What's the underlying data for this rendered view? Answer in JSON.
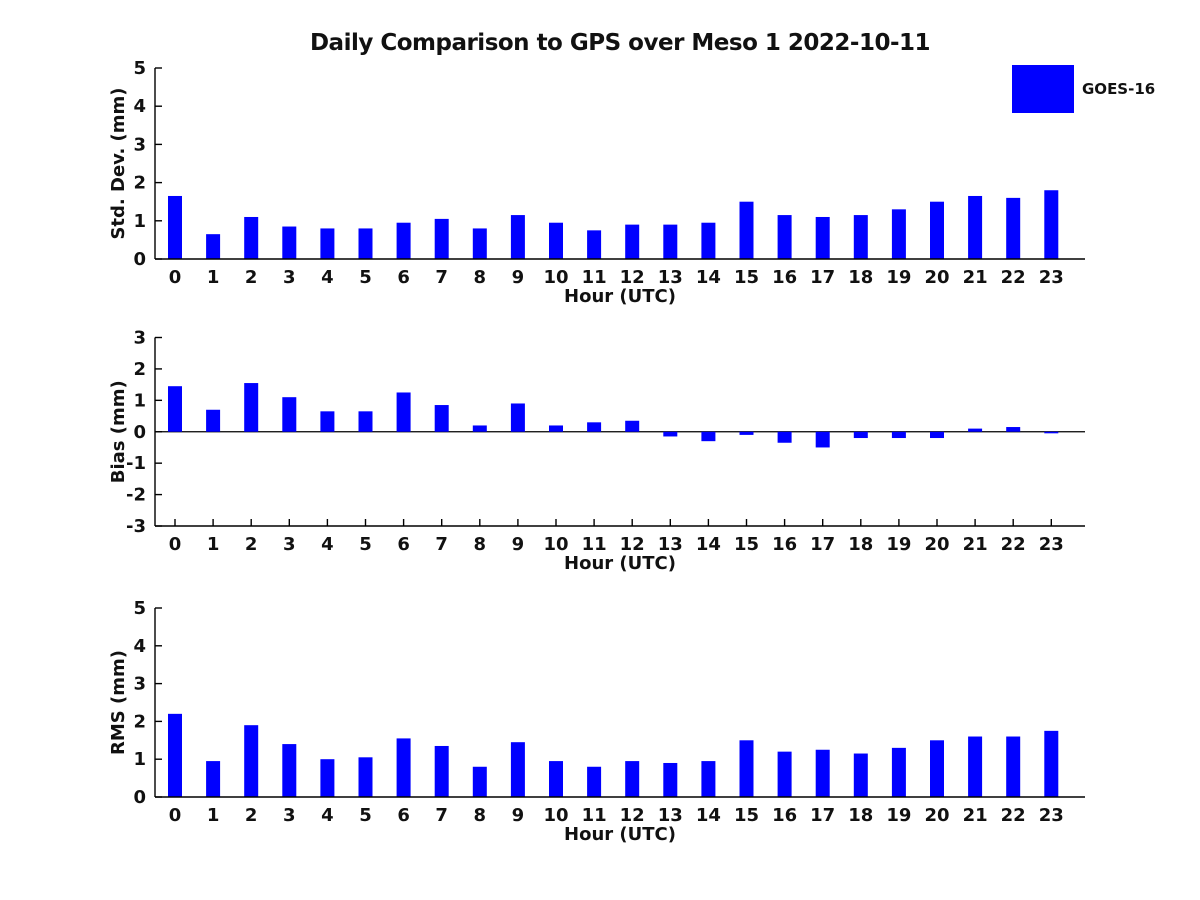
{
  "title": "Daily Comparison to GPS over Meso 1 2022-10-11",
  "legend": {
    "label": "GOES-16",
    "color": "#0000ff",
    "position": "top-right"
  },
  "colors": {
    "bar": "#0000ff",
    "axis": "#000000",
    "text": "#111111",
    "background": "#ffffff"
  },
  "chart_data": [
    {
      "type": "bar",
      "title": "",
      "series_name": "GOES-16",
      "categories": [
        "0",
        "1",
        "2",
        "3",
        "4",
        "5",
        "6",
        "7",
        "8",
        "9",
        "10",
        "11",
        "12",
        "13",
        "14",
        "15",
        "16",
        "17",
        "18",
        "19",
        "20",
        "21",
        "22",
        "23"
      ],
      "values": [
        1.65,
        0.65,
        1.1,
        0.85,
        0.8,
        0.8,
        0.95,
        1.05,
        0.8,
        1.15,
        0.95,
        0.75,
        0.9,
        0.9,
        0.95,
        1.5,
        1.15,
        1.1,
        1.15,
        1.3,
        1.5,
        1.65,
        1.6,
        1.8
      ],
      "xlabel": "Hour (UTC)",
      "ylabel": "Std. Dev. (mm)",
      "ylim": [
        0,
        5
      ],
      "yticks": [
        0,
        1,
        2,
        3,
        4,
        5
      ],
      "grid": false,
      "zero_line": false
    },
    {
      "type": "bar",
      "title": "",
      "series_name": "GOES-16",
      "categories": [
        "0",
        "1",
        "2",
        "3",
        "4",
        "5",
        "6",
        "7",
        "8",
        "9",
        "10",
        "11",
        "12",
        "13",
        "14",
        "15",
        "16",
        "17",
        "18",
        "19",
        "20",
        "21",
        "22",
        "23"
      ],
      "values": [
        1.45,
        0.7,
        1.55,
        1.1,
        0.65,
        0.65,
        1.25,
        0.85,
        0.2,
        0.9,
        0.2,
        0.3,
        0.35,
        -0.15,
        -0.3,
        -0.1,
        -0.35,
        -0.5,
        -0.2,
        -0.2,
        -0.2,
        0.1,
        0.15,
        -0.05
      ],
      "xlabel": "Hour (UTC)",
      "ylabel": "Bias (mm)",
      "ylim": [
        -3,
        3
      ],
      "yticks": [
        -3,
        -2,
        -1,
        0,
        1,
        2,
        3
      ],
      "grid": false,
      "zero_line": true
    },
    {
      "type": "bar",
      "title": "",
      "series_name": "GOES-16",
      "categories": [
        "0",
        "1",
        "2",
        "3",
        "4",
        "5",
        "6",
        "7",
        "8",
        "9",
        "10",
        "11",
        "12",
        "13",
        "14",
        "15",
        "16",
        "17",
        "18",
        "19",
        "20",
        "21",
        "22",
        "23"
      ],
      "values": [
        2.2,
        0.95,
        1.9,
        1.4,
        1.0,
        1.05,
        1.55,
        1.35,
        0.8,
        1.45,
        0.95,
        0.8,
        0.95,
        0.9,
        0.95,
        1.5,
        1.2,
        1.25,
        1.15,
        1.3,
        1.5,
        1.6,
        1.6,
        1.75
      ],
      "xlabel": "Hour (UTC)",
      "ylabel": "RMS (mm)",
      "ylim": [
        0,
        5
      ],
      "yticks": [
        0,
        1,
        2,
        3,
        4,
        5
      ],
      "grid": false,
      "zero_line": false
    }
  ]
}
